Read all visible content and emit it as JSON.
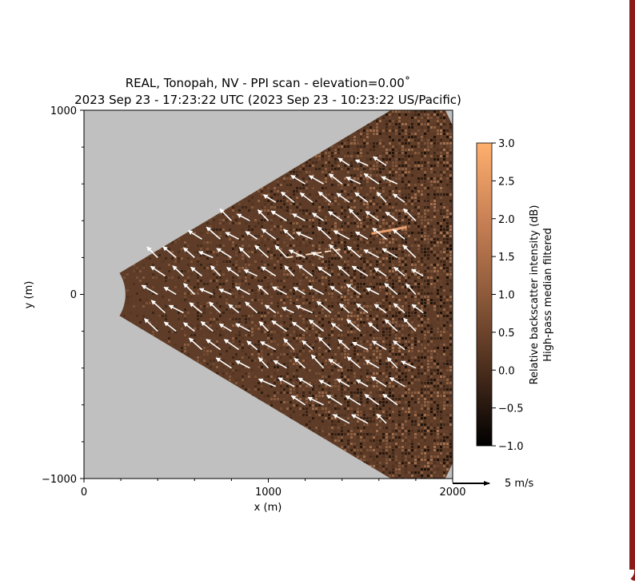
{
  "chart_data": {
    "type": "heatmap",
    "title_line1": "REAL, Tonopah, NV - PPI scan - elevation=0.00˚",
    "title_line2": "2023 Sep 23 - 17:23:22 UTC (2023 Sep 23 - 10:23:22 US/Pacific)",
    "xlabel": "x (m)",
    "ylabel": "y (m)",
    "xlim": [
      0,
      2000
    ],
    "ylim": [
      -1000,
      1000
    ],
    "xticks": [
      "0",
      "1000",
      "2000"
    ],
    "yticks": [
      "1000",
      "0",
      "−1000"
    ],
    "background_color": "#c0c0c0",
    "scan_sector": {
      "range_min": 225,
      "range_max": 2200,
      "azimuth_half_width_deg": 31
    },
    "colorbar": {
      "label_line1": "Relative backscatter intensity (dB)",
      "label_line2": "High-pass median filtered",
      "ticks": [
        "3.0",
        "2.5",
        "2.0",
        "1.5",
        "1.0",
        "0.5",
        "0.0",
        "−0.5",
        "−1.0"
      ],
      "range": [
        -1.0,
        3.0
      ],
      "colormap": [
        "#000000",
        "#4a2d1c",
        "#8e5a3a",
        "#c98155",
        "#ffb06e"
      ]
    },
    "vector_field": {
      "quiverkey_label": "5 m/s",
      "quiverkey_speed": 5,
      "arrow_color": "#ffffff",
      "predominant_direction": "toward upper-left (wind from south-east)"
    }
  }
}
